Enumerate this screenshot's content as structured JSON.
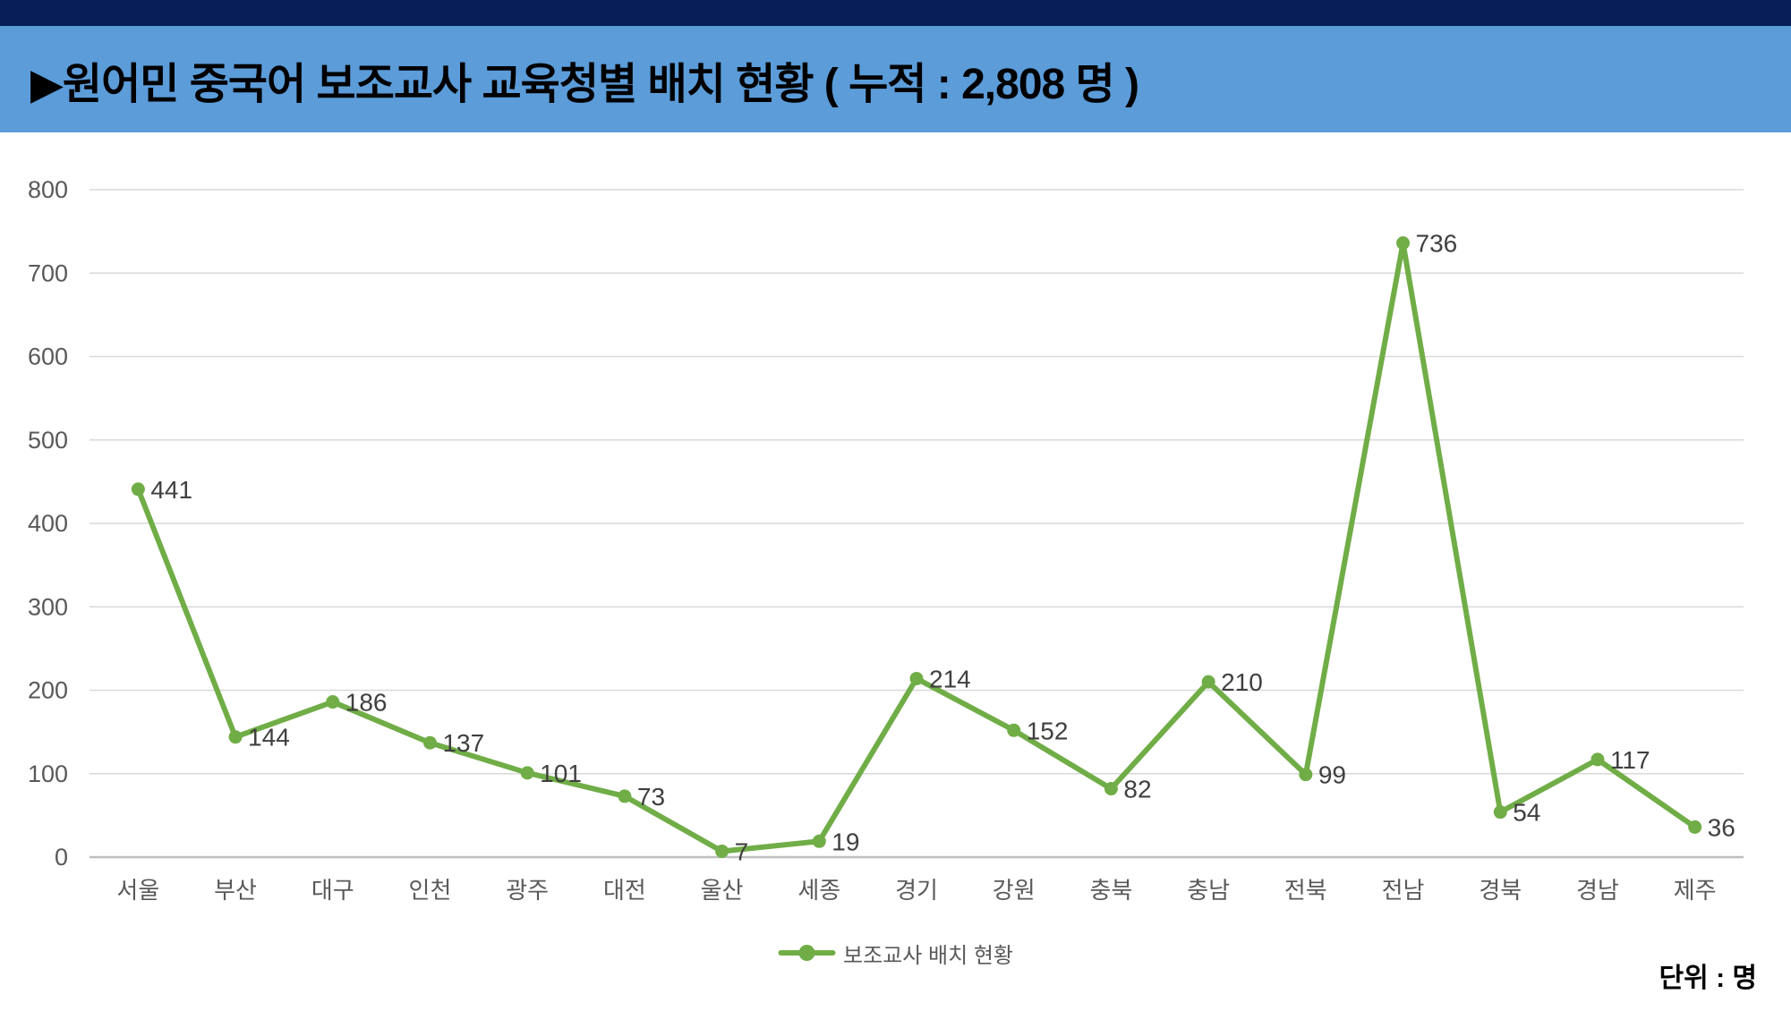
{
  "header": {
    "title": "▶원어민 중국어 보조교사 교육청별 배치 현황 ( 누적 : 2,808 명 )",
    "strip_color": "#071F56",
    "band_color": "#5B9CD9"
  },
  "chart_data": {
    "type": "line",
    "title": "원어민 중국어 보조교사 교육청별 배치 현황",
    "cumulative_total_label": "누적 : 2,808 명",
    "categories": [
      "서울",
      "부산",
      "대구",
      "인천",
      "광주",
      "대전",
      "울산",
      "세종",
      "경기",
      "강원",
      "충북",
      "충남",
      "전북",
      "전남",
      "경북",
      "경남",
      "제주"
    ],
    "series": [
      {
        "name": "보조교사 배치 현황",
        "values": [
          441,
          144,
          186,
          137,
          101,
          73,
          7,
          19,
          214,
          152,
          82,
          210,
          99,
          736,
          54,
          117,
          36
        ]
      }
    ],
    "xlabel": "",
    "ylabel": "",
    "ylim": [
      0,
      800
    ],
    "ytick_interval": 100,
    "grid": true,
    "data_labels": true,
    "legend_position": "bottom",
    "colors": {
      "line": "#70AD47",
      "marker": "#70AD47",
      "gridline": "#D9D9D9",
      "axis_line": "#BFBFBF",
      "tick_text": "#595959",
      "data_label_text": "#3F3F3F"
    }
  },
  "legend": {
    "label": "보조교사 배치 현황"
  },
  "footer": {
    "unit_label": "단위 :  명"
  }
}
